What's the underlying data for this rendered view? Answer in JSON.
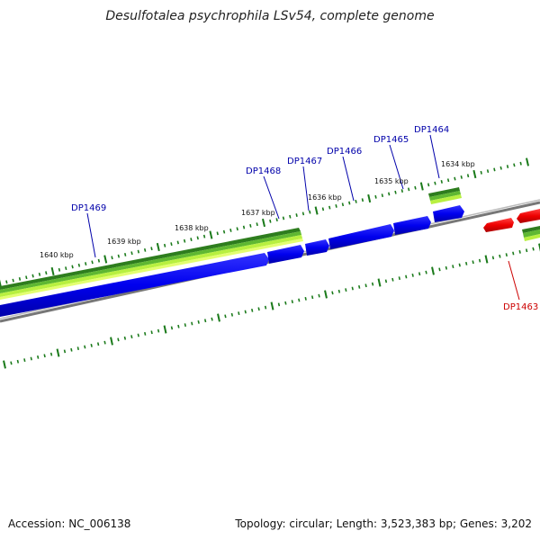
{
  "title": "Desulfotalea psychrophila LSv54, complete genome",
  "footer": {
    "accession": "Accession: NC_006138",
    "stats": "Topology: circular; Length: 3,523,383 bp; Genes: 3,202"
  },
  "scale_labels": [
    "1634 kbp",
    "1635 kbp",
    "1636 kbp",
    "1637 kbp",
    "1638 kbp",
    "1639 kbp",
    "1640 kbp"
  ],
  "genes": [
    {
      "label": "DP1463",
      "strand": "reverse",
      "color": "#cc0000"
    },
    {
      "label": "DP1464",
      "strand": "forward",
      "color": "#0000aa"
    },
    {
      "label": "DP1465",
      "strand": "forward",
      "color": "#0000aa"
    },
    {
      "label": "DP1466",
      "strand": "forward",
      "color": "#0000aa"
    },
    {
      "label": "DP1467",
      "strand": "forward",
      "color": "#0000aa"
    },
    {
      "label": "DP1468",
      "strand": "forward",
      "color": "#0000aa"
    },
    {
      "label": "DP1469",
      "strand": "forward",
      "color": "#0000aa"
    }
  ],
  "colors": {
    "forward_gene": "#0000ee",
    "reverse_gene": "#ee0000",
    "backbone": "#888888",
    "tick": "#1a7a1a",
    "track_dark": "#2e7d1e",
    "track_light": "#b8f040"
  }
}
